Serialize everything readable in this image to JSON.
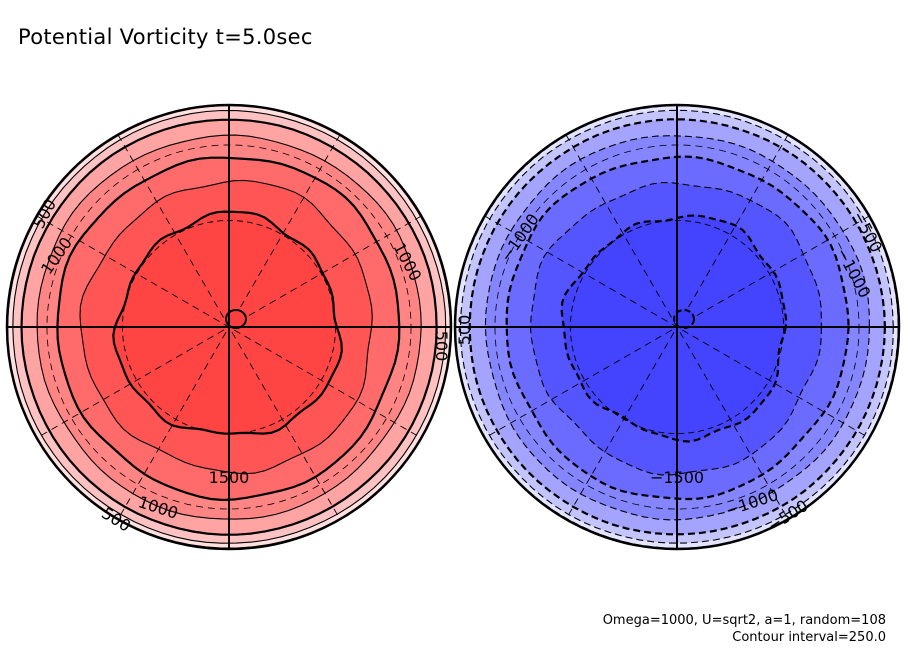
{
  "title": "Potential Vorticity t=5.0sec",
  "footer": {
    "line1": "Omega=1000, U=sqrt2, a=1, random=108",
    "line2": "Contour interval=250.0"
  },
  "chart_data": {
    "type": "heatmap",
    "subtype": "polar-stereographic-contour",
    "title": "Potential Vorticity t=5.0sec",
    "contour_interval": 250.0,
    "parameters": {
      "Omega": 1000,
      "U": "sqrt2",
      "a": 1,
      "random": 108
    },
    "panels": [
      {
        "name": "northern-hemisphere",
        "sign": "positive",
        "colormap": "reds",
        "levels": [
          0,
          250,
          500,
          750,
          1000,
          1250,
          1500,
          1750
        ],
        "fill_colors": [
          "#ffffff",
          "#ffe0e0",
          "#ffc2c2",
          "#ffa3a3",
          "#ff8585",
          "#ff6b6b",
          "#ff5555",
          "#ff4444"
        ],
        "labels": [
          {
            "text": "500",
            "where": "upper-left"
          },
          {
            "text": "1000",
            "where": "upper-left"
          },
          {
            "text": "1000",
            "where": "upper-right"
          },
          {
            "text": "500",
            "where": "right"
          },
          {
            "text": "1500",
            "where": "bottom"
          },
          {
            "text": "1000",
            "where": "bottom-left"
          },
          {
            "text": "500",
            "where": "bottom-left"
          }
        ]
      },
      {
        "name": "southern-hemisphere",
        "sign": "negative",
        "colormap": "blues",
        "levels": [
          0,
          -250,
          -500,
          -750,
          -1000,
          -1250,
          -1500,
          -1750
        ],
        "fill_colors": [
          "#ffffff",
          "#e4e4ff",
          "#c4c4ff",
          "#a4a4ff",
          "#8585ff",
          "#6b6bff",
          "#5555ff",
          "#4444ff"
        ],
        "labels": [
          {
            "text": "500",
            "where": "left"
          },
          {
            "text": "−1000",
            "where": "upper-left"
          },
          {
            "text": "−500",
            "where": "upper-right"
          },
          {
            "text": "−1000",
            "where": "upper-right"
          },
          {
            "text": "−1500",
            "where": "bottom"
          },
          {
            "text": "−1000",
            "where": "bottom-right"
          },
          {
            "text": "−500",
            "where": "bottom-right"
          }
        ]
      }
    ],
    "grid": true,
    "meridian_spacing_deg": 30,
    "parallels_deg": [
      30,
      60
    ]
  }
}
